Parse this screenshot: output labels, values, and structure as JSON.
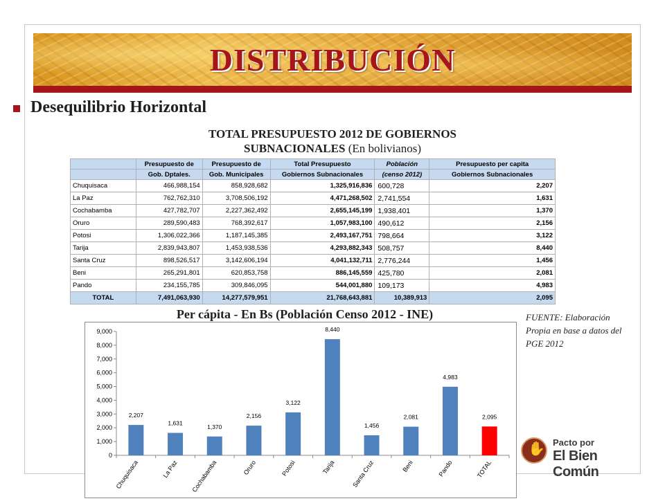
{
  "slide": {
    "title": "DISTRIBUCIÓN",
    "bullet": "Desequilibrio Horizontal",
    "table_title_line1": "TOTAL PRESUPUESTO 2012 DE GOBIERNOS",
    "table_title_line2_bold": "SUBNACIONALES",
    "table_title_line2_plain": "(En bolivianos)",
    "chart_heading": "Per cápita - En Bs (Población Censo 2012 - INE)",
    "source": "FUENTE: Elaboración Propia en base a datos del PGE 2012",
    "logo_line1": "Pacto por",
    "logo_line2": "El Bien Común",
    "accent_color": "#a4161a",
    "header_fill": "#c5d9f1"
  },
  "table": {
    "headers": [
      [
        "",
        "Presupuesto de",
        "Presupuesto de",
        "Total Presupuesto",
        "Población",
        "Presupuesto per capita"
      ],
      [
        "",
        "Gob. Dptales.",
        "Gob. Municipales",
        "Gobiernos Subnacionales",
        "(censo 2012)",
        "Gobiernos Subnacionales"
      ]
    ],
    "rows": [
      {
        "name": "Chuquisaca",
        "dptales": "466,988,154",
        "municipales": "858,928,682",
        "total": "1,325,916,836",
        "poblacion": "600,728",
        "percapita": "2,207"
      },
      {
        "name": "La Paz",
        "dptales": "762,762,310",
        "municipales": "3,708,506,192",
        "total": "4,471,268,502",
        "poblacion": "2,741,554",
        "percapita": "1,631"
      },
      {
        "name": "Cochabamba",
        "dptales": "427,782,707",
        "municipales": "2,227,362,492",
        "total": "2,655,145,199",
        "poblacion": "1,938,401",
        "percapita": "1,370"
      },
      {
        "name": "Oruro",
        "dptales": "289,590,483",
        "municipales": "768,392,617",
        "total": "1,057,983,100",
        "poblacion": "490,612",
        "percapita": "2,156"
      },
      {
        "name": "Potosi",
        "dptales": "1,306,022,366",
        "municipales": "1,187,145,385",
        "total": "2,493,167,751",
        "poblacion": "798,664",
        "percapita": "3,122"
      },
      {
        "name": "Tarija",
        "dptales": "2,839,943,807",
        "municipales": "1,453,938,536",
        "total": "4,293,882,343",
        "poblacion": "508,757",
        "percapita": "8,440"
      },
      {
        "name": "Santa Cruz",
        "dptales": "898,526,517",
        "municipales": "3,142,606,194",
        "total": "4,041,132,711",
        "poblacion": "2,776,244",
        "percapita": "1,456"
      },
      {
        "name": "Beni",
        "dptales": "265,291,801",
        "municipales": "620,853,758",
        "total": "886,145,559",
        "poblacion": "425,780",
        "percapita": "2,081"
      },
      {
        "name": "Pando",
        "dptales": "234,155,785",
        "municipales": "309,846,095",
        "total": "544,001,880",
        "poblacion": "109,173",
        "percapita": "4,983"
      }
    ],
    "total": {
      "name": "TOTAL",
      "dptales": "7,491,063,930",
      "municipales": "14,277,579,951",
      "total": "21,768,643,881",
      "poblacion": "10,389,913",
      "percapita": "2,095"
    }
  },
  "chart_data": {
    "type": "bar",
    "title": "Per cápita - En Bs (Población Censo 2012 - INE)",
    "categories": [
      "Chuquisaca",
      "La Paz",
      "Cochabamba",
      "Oruro",
      "Potosi",
      "Tarija",
      "Santa Cruz",
      "Beni",
      "Pando",
      "TOTAL"
    ],
    "values": [
      2207,
      1631,
      1370,
      2156,
      3122,
      8440,
      1456,
      2081,
      4983,
      2095
    ],
    "value_labels": [
      "2,207",
      "1,631",
      "1,370",
      "2,156",
      "3,122",
      "8,440",
      "1,456",
      "2,081",
      "4,983",
      "2,095"
    ],
    "y_ticks": [
      "0",
      "1,000",
      "2,000",
      "3,000",
      "4,000",
      "5,000",
      "6,000",
      "7,000",
      "8,000",
      "9,000"
    ],
    "ylim": [
      0,
      9000
    ],
    "grid": false,
    "legend": "none",
    "bar_color": "#4f81bd",
    "highlight_color": "#ff0000",
    "highlight_category": "TOTAL"
  }
}
